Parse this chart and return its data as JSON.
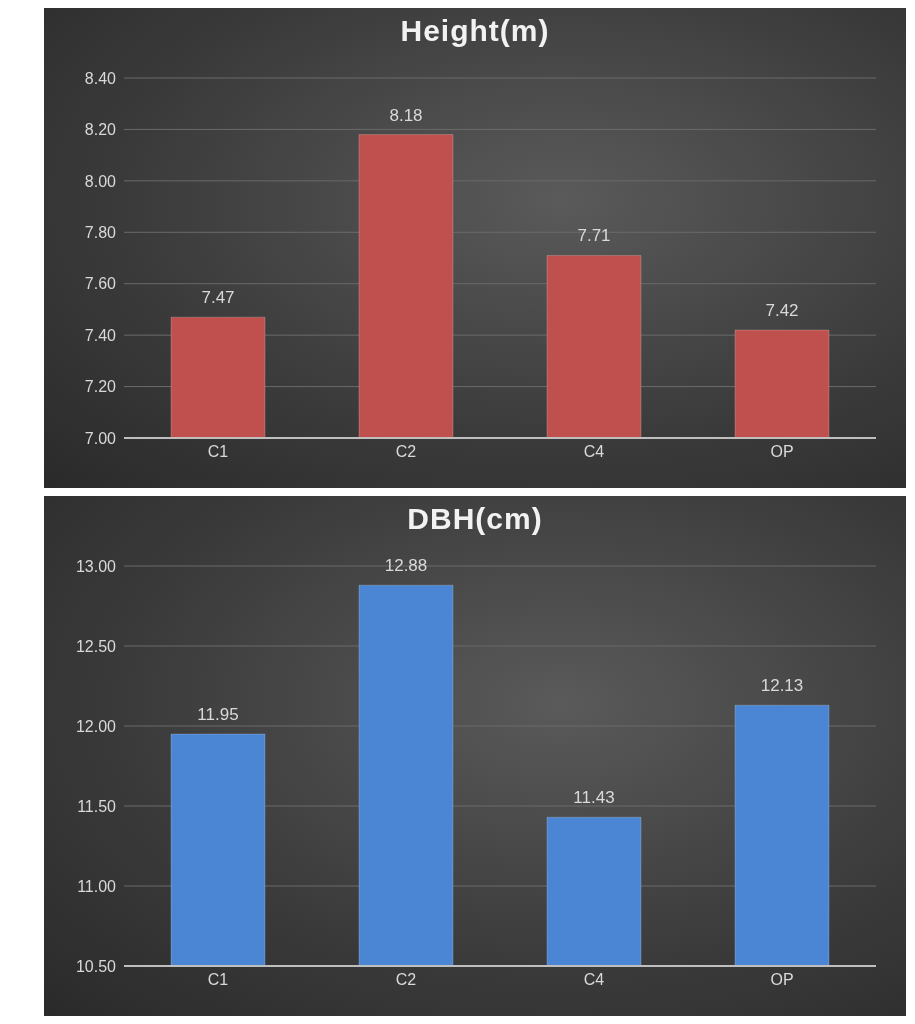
{
  "chart_data": [
    {
      "type": "bar",
      "title": "Height(m)",
      "categories": [
        "C1",
        "C2",
        "C4",
        "OP"
      ],
      "values": [
        7.47,
        8.18,
        7.71,
        7.42
      ],
      "color": "#c0504d",
      "ylim": [
        7.0,
        8.4
      ],
      "yticks": [
        {
          "value": 7.0,
          "label": "7.00"
        },
        {
          "value": 7.2,
          "label": "7.20"
        },
        {
          "value": 7.4,
          "label": "7.40"
        },
        {
          "value": 7.6,
          "label": "7.60"
        },
        {
          "value": 7.8,
          "label": "7.80"
        },
        {
          "value": 8.0,
          "label": "8.00"
        },
        {
          "value": 8.2,
          "label": "8.20"
        },
        {
          "value": 8.4,
          "label": "8.40"
        }
      ],
      "grid": "y",
      "data_labels": true
    },
    {
      "type": "bar",
      "title": "DBH(cm)",
      "categories": [
        "C1",
        "C2",
        "C4",
        "OP"
      ],
      "values": [
        11.95,
        12.88,
        11.43,
        12.13
      ],
      "color": "#4a86d4",
      "ylim": [
        10.5,
        13.0
      ],
      "yticks": [
        {
          "value": 10.5,
          "label": "10.50"
        },
        {
          "value": 11.0,
          "label": "11.00"
        },
        {
          "value": 11.5,
          "label": "11.50"
        },
        {
          "value": 12.0,
          "label": "12.00"
        },
        {
          "value": 12.5,
          "label": "12.50"
        },
        {
          "value": 13.0,
          "label": "13.00"
        }
      ],
      "grid": "y",
      "data_labels": true
    }
  ]
}
